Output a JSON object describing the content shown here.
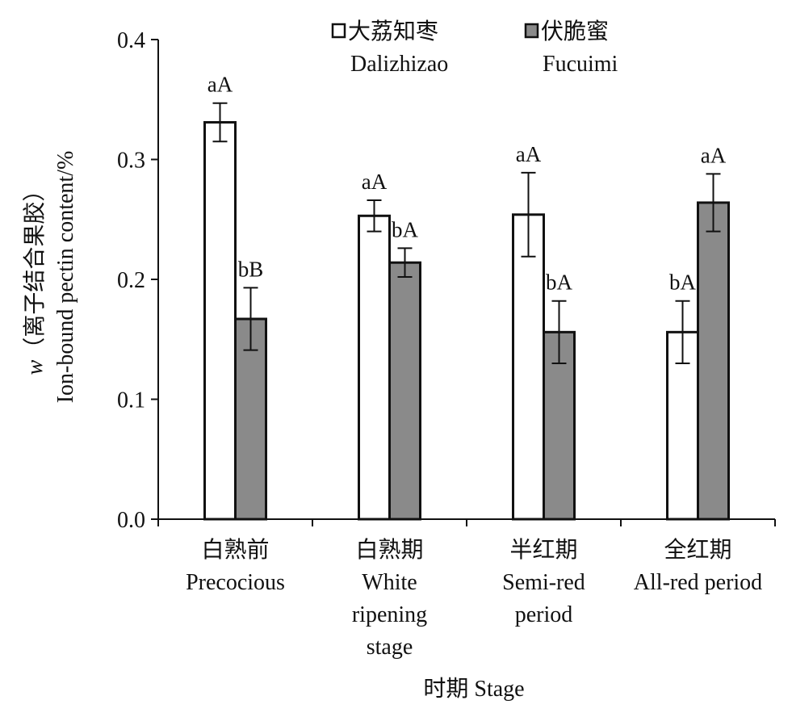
{
  "chart_data": {
    "type": "bar",
    "title": "",
    "categories": [
      [
        "白熟前",
        "Precocious"
      ],
      [
        "白熟期",
        "White",
        "ripening",
        "stage"
      ],
      [
        "半红期",
        "Semi-red",
        "period"
      ],
      [
        "全红期",
        "All-red period"
      ]
    ],
    "series": [
      {
        "name_cn": "大荔知枣",
        "name_en": "Dalizhizao",
        "color": "#ffffff",
        "values": [
          0.331,
          0.253,
          0.254,
          0.156
        ],
        "errors": [
          0.016,
          0.013,
          0.035,
          0.026
        ],
        "sig_labels": [
          "aA",
          "aA",
          "aA",
          "bA"
        ]
      },
      {
        "name_cn": "伏脆蜜",
        "name_en": "Fucuimi",
        "color": "#8a8a8a",
        "values": [
          0.167,
          0.214,
          0.156,
          0.264
        ],
        "errors": [
          0.026,
          0.012,
          0.026,
          0.024
        ],
        "sig_labels": [
          "bB",
          "bA",
          "bA",
          "aA"
        ]
      }
    ],
    "ylim": [
      0.0,
      0.4
    ],
    "yticks": [
      "0.0",
      "0.1",
      "0.2",
      "0.3",
      "0.4"
    ],
    "ylabel_line1_var": "w",
    "ylabel_line1_rest": "（离子结合果胶）",
    "ylabel_line2": "Ion-bound pectin content/%",
    "xlabel": "时期 Stage",
    "legend_position": "top-center",
    "grid": false
  }
}
